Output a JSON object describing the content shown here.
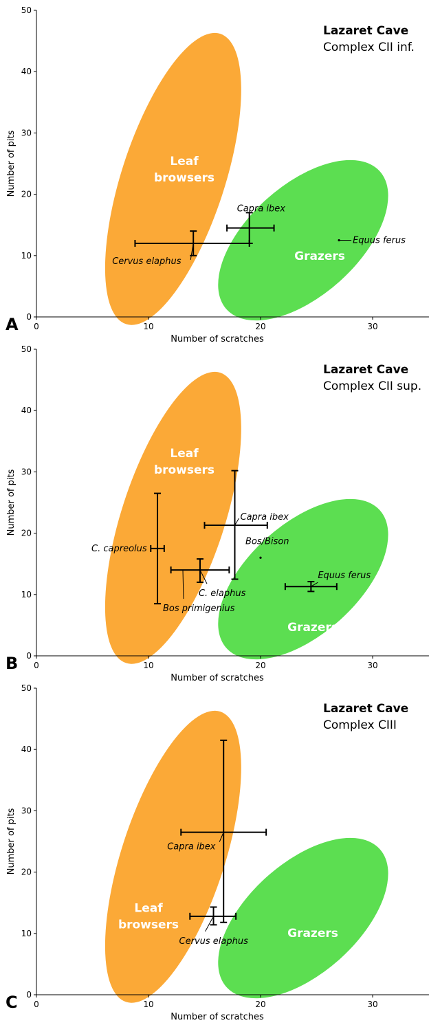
{
  "browser_color": "#FBA937",
  "grazer_color": "#5CDE51",
  "chart_data": [
    {
      "type": "scatter",
      "panel_letter": "A",
      "title": "Lazaret Cave",
      "subtitle": "Complex CII inf.",
      "xlabel": "Number of scratches",
      "ylabel": "Number of pits",
      "xlim": [
        0,
        35
      ],
      "ylim": [
        0,
        50
      ],
      "xticks": [
        0,
        10,
        20,
        30
      ],
      "yticks": [
        0,
        10,
        20,
        30,
        40,
        50
      ],
      "zones": [
        {
          "label": "Leaf browsers",
          "lines": [
            "Leaf",
            "browsers"
          ]
        },
        {
          "label": "Grazers",
          "lines": [
            "Grazers"
          ]
        }
      ],
      "series": [
        {
          "name": "Cervus elaphus",
          "x": 14,
          "y": 12,
          "x_range": [
            8.8,
            19
          ],
          "y_range": [
            10,
            14
          ]
        },
        {
          "name": "Capra ibex",
          "x": 19,
          "y": 14.5,
          "x_range": [
            17,
            21.2
          ],
          "y_range": [
            12,
            17
          ]
        },
        {
          "name": "Equus ferus",
          "x": 27,
          "y": 12.5
        }
      ]
    },
    {
      "type": "scatter",
      "panel_letter": "B",
      "title": "Lazaret Cave",
      "subtitle": "Complex CII sup.",
      "xlabel": "Number of scratches",
      "ylabel": "Number of pits",
      "xlim": [
        0,
        35
      ],
      "ylim": [
        0,
        50
      ],
      "xticks": [
        0,
        10,
        20,
        30
      ],
      "yticks": [
        0,
        10,
        20,
        30,
        40,
        50
      ],
      "zones": [
        {
          "label": "Leaf browsers",
          "lines": [
            "Leaf",
            "browsers"
          ]
        },
        {
          "label": "Grazers",
          "lines": [
            "Grazers"
          ]
        }
      ],
      "series": [
        {
          "name": "C. capreolus",
          "x": 10.8,
          "y": 17.5,
          "x_range": [
            10.2,
            11.4
          ],
          "y_range": [
            8.5,
            26.5
          ]
        },
        {
          "name": "Capra ibex",
          "x": 17.7,
          "y": 21.3,
          "x_range": [
            15,
            20.6
          ],
          "y_range": [
            12.5,
            30.2
          ]
        },
        {
          "name": "Bos primigenius",
          "x": 14.6,
          "y": 14,
          "x_range": [
            12,
            17.2
          ],
          "y_range": [
            12,
            15.8
          ]
        },
        {
          "name": "C. elaphus",
          "x": 14.6,
          "y": 14
        },
        {
          "name": "Bos/Bison",
          "x": 20,
          "y": 16
        },
        {
          "name": "Equus ferus",
          "x": 24.5,
          "y": 11.3,
          "x_range": [
            22.2,
            26.8
          ],
          "y_range": [
            10.5,
            12.1
          ]
        }
      ]
    },
    {
      "type": "scatter",
      "panel_letter": "C",
      "title": "Lazaret Cave",
      "subtitle": "Complex CIII",
      "xlabel": "Number of scratches",
      "ylabel": "Number of pits",
      "xlim": [
        0,
        35
      ],
      "ylim": [
        0,
        50
      ],
      "xticks": [
        0,
        10,
        20,
        30
      ],
      "yticks": [
        0,
        10,
        20,
        30,
        40,
        50
      ],
      "zones": [
        {
          "label": "Leaf browsers",
          "lines": [
            "Leaf",
            "browsers"
          ]
        },
        {
          "label": "Grazers",
          "lines": [
            "Grazers"
          ]
        }
      ],
      "series": [
        {
          "name": "Capra ibex",
          "x": 16.7,
          "y": 26.5,
          "x_range": [
            12.9,
            20.5
          ],
          "y_range": [
            11.8,
            41.5
          ]
        },
        {
          "name": "Cervus elaphus",
          "x": 15.8,
          "y": 12.8,
          "x_range": [
            13.7,
            17.8
          ],
          "y_range": [
            11.4,
            14.3
          ]
        }
      ]
    }
  ]
}
